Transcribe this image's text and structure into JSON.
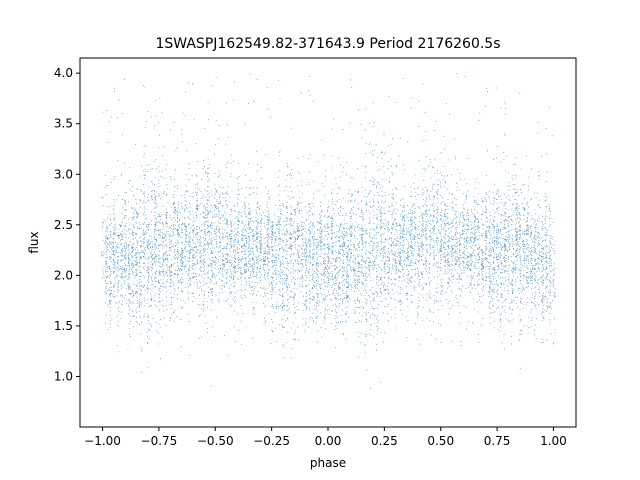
{
  "chart_data": {
    "type": "scatter",
    "title": "1SWASPJ162549.82-371643.9 Period 2176260.5s",
    "xlabel": "phase",
    "ylabel": "flux",
    "xlim": [
      -1.1,
      1.1
    ],
    "ylim": [
      0.5,
      4.15
    ],
    "xticks": [
      -1.0,
      -0.75,
      -0.5,
      -0.25,
      0.0,
      0.25,
      0.5,
      0.75,
      1.0
    ],
    "xtick_labels": [
      "−1.00",
      "−0.75",
      "−0.50",
      "−0.25",
      "0.00",
      "0.25",
      "0.50",
      "0.75",
      "1.00"
    ],
    "yticks": [
      1.0,
      1.5,
      2.0,
      2.5,
      3.0,
      3.5,
      4.0
    ],
    "ytick_labels": [
      "1.0",
      "1.5",
      "2.0",
      "2.5",
      "3.0",
      "3.5",
      "4.0"
    ],
    "grid": false,
    "marker_color": "#1f77b4",
    "series": [
      {
        "profile_x": [
          -1.0,
          -0.95,
          -0.9,
          -0.85,
          -0.8,
          -0.75,
          -0.7,
          -0.65,
          -0.6,
          -0.55,
          -0.5,
          -0.45,
          -0.4,
          -0.35,
          -0.3,
          -0.25,
          -0.2,
          -0.15,
          -0.1,
          -0.05,
          0.0
        ],
        "profile_center": [
          2.15,
          2.15,
          2.2,
          2.15,
          2.2,
          2.25,
          2.25,
          2.3,
          2.3,
          2.35,
          2.35,
          2.3,
          2.3,
          2.25,
          2.25,
          2.2,
          2.2,
          2.25,
          2.2,
          2.15,
          2.15
        ],
        "profile_spread": [
          0.25,
          0.3,
          0.3,
          0.35,
          0.45,
          0.4,
          0.3,
          0.25,
          0.3,
          0.35,
          0.35,
          0.3,
          0.25,
          0.25,
          0.25,
          0.3,
          0.35,
          0.35,
          0.3,
          0.3,
          0.3
        ],
        "phase_period": 1.0,
        "y_min": 0.7,
        "y_max": 4.05,
        "point_count": 9000
      }
    ]
  }
}
